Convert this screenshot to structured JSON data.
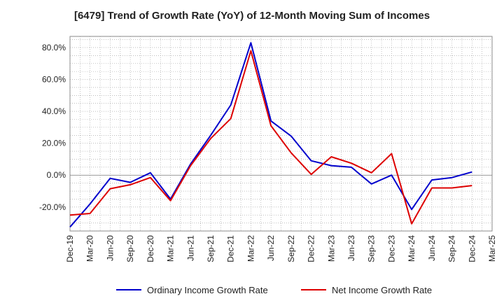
{
  "chart_data": {
    "type": "line",
    "title": "[6479]  Trend of Growth Rate (YoY) of 12-Month Moving Sum of Incomes",
    "xlabel": "",
    "ylabel": "",
    "ylim": [
      -35,
      87
    ],
    "yticks": [
      -20,
      0,
      20,
      40,
      60,
      80
    ],
    "ytick_labels": [
      "-20.0%",
      "0.0%",
      "20.0%",
      "40.0%",
      "60.0%",
      "80.0%"
    ],
    "xtick_labels": [
      "Dec-19",
      "Mar-20",
      "Jun-20",
      "Sep-20",
      "Dec-20",
      "Mar-21",
      "Jun-21",
      "Sep-21",
      "Dec-21",
      "Mar-22",
      "Jun-22",
      "Sep-22",
      "Dec-22",
      "Mar-23",
      "Jun-23",
      "Sep-23",
      "Dec-23",
      "Mar-24",
      "Jun-24",
      "Sep-24",
      "Dec-24",
      "Mar-25"
    ],
    "x": [
      "Dec-19",
      "Mar-20",
      "Jun-20",
      "Sep-20",
      "Dec-20",
      "Mar-21",
      "Jun-21",
      "Sep-21",
      "Dec-21",
      "Mar-22",
      "Jun-22",
      "Sep-22",
      "Dec-22",
      "Mar-23",
      "Jun-23",
      "Sep-23",
      "Dec-23",
      "Mar-24",
      "Jun-24",
      "Sep-24",
      "Dec-24"
    ],
    "grid": true,
    "legend_position": "bottom",
    "series": [
      {
        "name": "Ordinary Income Growth Rate",
        "color": "#0000cc",
        "values": [
          -32.5,
          -18,
          -2,
          -4.5,
          1.5,
          -15,
          7,
          25,
          44,
          83,
          34,
          24.5,
          9,
          6,
          5,
          -5.5,
          0,
          -21.5,
          -3,
          -1.5,
          2
        ]
      },
      {
        "name": "Net Income Growth Rate",
        "color": "#dd0000",
        "values": [
          -25,
          -24,
          -8.5,
          -6,
          -1.5,
          -16,
          6,
          23,
          35.5,
          78,
          31,
          14,
          0.5,
          11.5,
          7.5,
          1.5,
          13.5,
          -30.5,
          -8,
          -8,
          -6.5
        ]
      }
    ]
  }
}
